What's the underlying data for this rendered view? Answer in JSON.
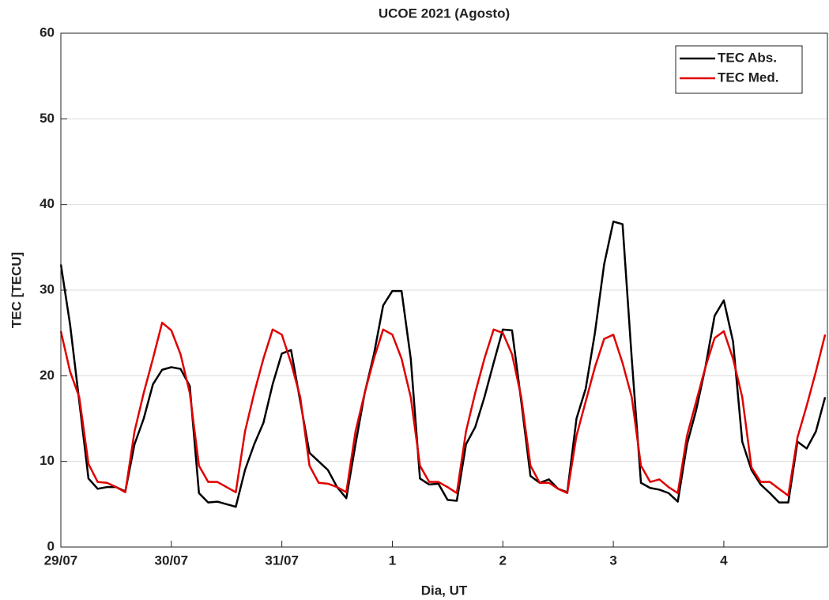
{
  "chart_data": {
    "type": "line",
    "title": "UCOE 2021 (Agosto)",
    "x_label": "Dia, UT",
    "y_label": "TEC [TECU]",
    "x": [
      0,
      2,
      4,
      6,
      8,
      10,
      12,
      14,
      16,
      18,
      20,
      22,
      24,
      26,
      28,
      30,
      32,
      34,
      36,
      38,
      40,
      42,
      44,
      46,
      48,
      50,
      52,
      54,
      56,
      58,
      60,
      62,
      64,
      66,
      68,
      70,
      72,
      74,
      76,
      78,
      80,
      82,
      84,
      86,
      88,
      90,
      92,
      94,
      96,
      98,
      100,
      102,
      104,
      106,
      108,
      110,
      112,
      114,
      116,
      118,
      120,
      122,
      124,
      126,
      128,
      130,
      132,
      134,
      136,
      138,
      140,
      142,
      144,
      146,
      148,
      150,
      152,
      154,
      156,
      158,
      160,
      162,
      164,
      166
    ],
    "series": [
      {
        "name": "TEC Abs.",
        "color": "#000000",
        "values": [
          33,
          26,
          17,
          8,
          6.8,
          7,
          7,
          6.5,
          12,
          15,
          19,
          20.7,
          21,
          20.8,
          18.8,
          6.3,
          5.2,
          5.3,
          5,
          4.7,
          9,
          12,
          14.5,
          19,
          22.6,
          23,
          17,
          11,
          10,
          9,
          7,
          5.7,
          12,
          18,
          22.5,
          28.2,
          29.9,
          29.9,
          22,
          8,
          7.3,
          7.4,
          5.5,
          5.4,
          12,
          14,
          17.5,
          21.5,
          25.4,
          25.3,
          17,
          8.3,
          7.5,
          7.9,
          6.8,
          6.4,
          15,
          18.5,
          25,
          33,
          38,
          37.7,
          22,
          7.5,
          6.9,
          6.7,
          6.3,
          5.3,
          12,
          16,
          21,
          27,
          28.8,
          24,
          12.3,
          9,
          7.3,
          6.3,
          5.2,
          5.2,
          12.3,
          11.5,
          13.5,
          17.5
        ]
      },
      {
        "name": "TEC Med.",
        "color": "#e00000",
        "values": [
          25.2,
          20.5,
          17.5,
          9.7,
          7.6,
          7.5,
          7,
          6.4,
          13.5,
          18,
          22,
          26.2,
          25.3,
          22.5,
          18,
          9.5,
          7.6,
          7.6,
          7,
          6.4,
          13.5,
          18,
          22,
          25.4,
          24.8,
          21.5,
          17.5,
          9.5,
          7.5,
          7.4,
          7,
          6.4,
          13.5,
          18,
          22,
          25.4,
          24.8,
          22,
          17.5,
          9.5,
          7.6,
          7.6,
          7,
          6.3,
          13.5,
          18,
          22,
          25.4,
          25,
          22.5,
          17.5,
          9.5,
          7.5,
          7.5,
          6.8,
          6.3,
          13,
          17,
          21,
          24.3,
          24.8,
          21.5,
          17.5,
          9.5,
          7.6,
          7.9,
          7,
          6.3,
          13,
          17,
          21,
          24.4,
          25.2,
          22,
          17.5,
          9.3,
          7.6,
          7.6,
          6.8,
          6,
          12.8,
          16.5,
          20.5,
          24.8
        ]
      }
    ],
    "xlim": [
      0,
      166.5
    ],
    "xticks": [
      {
        "value": 0,
        "label": "29/07"
      },
      {
        "value": 24,
        "label": "30/07"
      },
      {
        "value": 48,
        "label": "31/07"
      },
      {
        "value": 72,
        "label": "1"
      },
      {
        "value": 96,
        "label": "2"
      },
      {
        "value": 120,
        "label": "3"
      },
      {
        "value": 144,
        "label": "4"
      }
    ],
    "ylim": [
      0,
      60
    ],
    "yticks": [
      0,
      10,
      20,
      30,
      40,
      50,
      60
    ],
    "grid": true,
    "legend": "upper right"
  }
}
